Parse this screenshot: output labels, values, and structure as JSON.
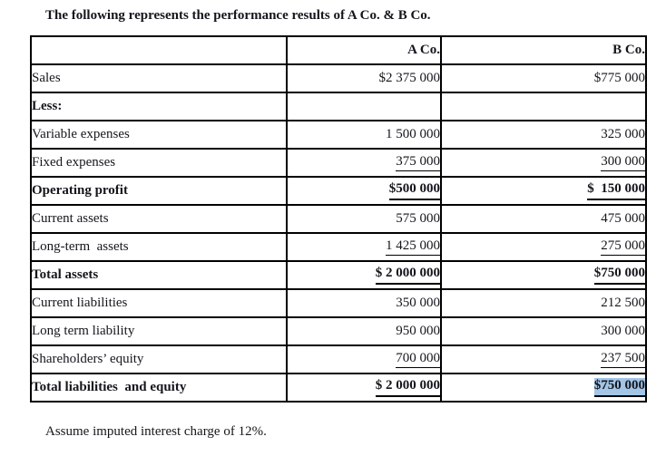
{
  "title": "The following represents the performance results of A Co. & B Co.",
  "footnote": "Assume imputed interest charge of 12%.",
  "highlight_color": "#a3c5e6",
  "table": {
    "columns": [
      "",
      "A Co.",
      "B Co."
    ],
    "rows": [
      {
        "label": "Sales",
        "a": "$2 375 000",
        "b": "$775 000",
        "bold": false,
        "underline": false,
        "highlight_b": false
      },
      {
        "label": "Less:",
        "a": "",
        "b": "",
        "bold": true,
        "underline": false,
        "highlight_b": false
      },
      {
        "label": "Variable expenses",
        "a": "1 500 000",
        "b": "325 000",
        "bold": false,
        "underline": false,
        "highlight_b": false
      },
      {
        "label": "Fixed expenses",
        "a": "375 000",
        "b": "300 000",
        "bold": false,
        "underline": true,
        "highlight_b": false
      },
      {
        "label": "Operating profit",
        "a": "$500 000",
        "b": "$  150 000",
        "bold": true,
        "underline": true,
        "highlight_b": false
      },
      {
        "label": "Current assets",
        "a": "575 000",
        "b": "475 000",
        "bold": false,
        "underline": false,
        "highlight_b": false
      },
      {
        "label": "Long-term  assets",
        "a": "1 425 000",
        "b": "275 000",
        "bold": false,
        "underline": true,
        "highlight_b": false
      },
      {
        "label": "Total assets",
        "a": "$ 2 000 000",
        "b": "$750 000",
        "bold": true,
        "underline": true,
        "highlight_b": false
      },
      {
        "label": "Current liabilities",
        "a": "350 000",
        "b": "212 500",
        "bold": false,
        "underline": false,
        "highlight_b": false
      },
      {
        "label": "Long term liability",
        "a": "950 000",
        "b": "300 000",
        "bold": false,
        "underline": false,
        "highlight_b": false
      },
      {
        "label": "Shareholders’ equity",
        "a": "700 000",
        "b": "237 500",
        "bold": false,
        "underline": true,
        "highlight_b": false
      },
      {
        "label": "Total liabilities  and equity",
        "a": "$ 2 000 000",
        "b": "$750 000",
        "bold": true,
        "underline": true,
        "highlight_b": true
      }
    ]
  }
}
